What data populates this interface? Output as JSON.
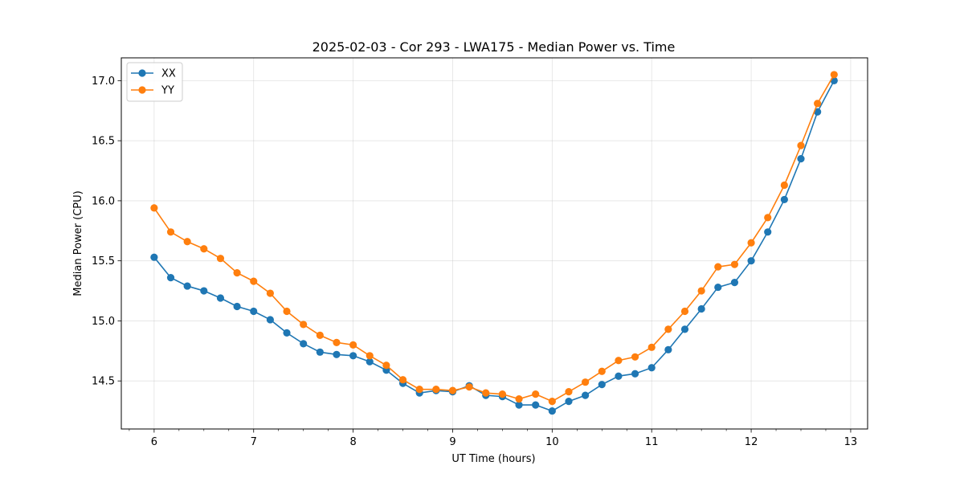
{
  "chart_data": {
    "type": "line",
    "title": "2025-02-03 - Cor 293 - LWA175 - Median Power vs. Time",
    "xlabel": "UT Time (hours)",
    "ylabel": "Median Power (CPU)",
    "xlim": [
      5.67,
      13.17
    ],
    "ylim": [
      14.1,
      17.19
    ],
    "xticks": [
      6,
      7,
      8,
      9,
      10,
      11,
      12,
      13
    ],
    "xtick_labels": [
      "6",
      "7",
      "8",
      "9",
      "10",
      "11",
      "12",
      "13"
    ],
    "yticks": [
      14.5,
      15.0,
      15.5,
      16.0,
      16.5,
      17.0
    ],
    "ytick_labels": [
      "14.5",
      "15.0",
      "15.5",
      "16.0",
      "16.5",
      "17.0"
    ],
    "x_minor_tick_step": 0.25,
    "grid": true,
    "legend_position": "top-left",
    "x": [
      6.0,
      6.1667,
      6.3333,
      6.5,
      6.6667,
      6.8333,
      7.0,
      7.1667,
      7.3333,
      7.5,
      7.6667,
      7.8333,
      8.0,
      8.1667,
      8.3333,
      8.5,
      8.6667,
      8.8333,
      9.0,
      9.1667,
      9.3333,
      9.5,
      9.6667,
      9.8333,
      10.0,
      10.1667,
      10.3333,
      10.5,
      10.6667,
      10.8333,
      11.0,
      11.1667,
      11.3333,
      11.5,
      11.6667,
      11.8333,
      12.0,
      12.1667,
      12.3333,
      12.5,
      12.6667,
      12.8333
    ],
    "series": [
      {
        "name": "XX",
        "color": "#1f77b4",
        "values": [
          15.53,
          15.36,
          15.29,
          15.25,
          15.19,
          15.12,
          15.08,
          15.01,
          14.9,
          14.81,
          14.74,
          14.72,
          14.71,
          14.66,
          14.59,
          14.48,
          14.4,
          14.42,
          14.41,
          14.46,
          14.38,
          14.37,
          14.3,
          14.3,
          14.25,
          14.33,
          14.38,
          14.47,
          14.54,
          14.56,
          14.61,
          14.76,
          14.93,
          15.1,
          15.28,
          15.32,
          15.5,
          15.74,
          16.01,
          16.35,
          16.74,
          17.0
        ]
      },
      {
        "name": "YY",
        "color": "#ff7f0e",
        "values": [
          15.94,
          15.74,
          15.66,
          15.6,
          15.52,
          15.4,
          15.33,
          15.23,
          15.08,
          14.97,
          14.88,
          14.82,
          14.8,
          14.71,
          14.63,
          14.51,
          14.43,
          14.43,
          14.42,
          14.45,
          14.4,
          14.39,
          14.35,
          14.39,
          14.33,
          14.41,
          14.49,
          14.58,
          14.67,
          14.7,
          14.78,
          14.93,
          15.08,
          15.25,
          15.45,
          15.47,
          15.65,
          15.86,
          16.13,
          16.46,
          16.81,
          17.05
        ]
      }
    ]
  }
}
